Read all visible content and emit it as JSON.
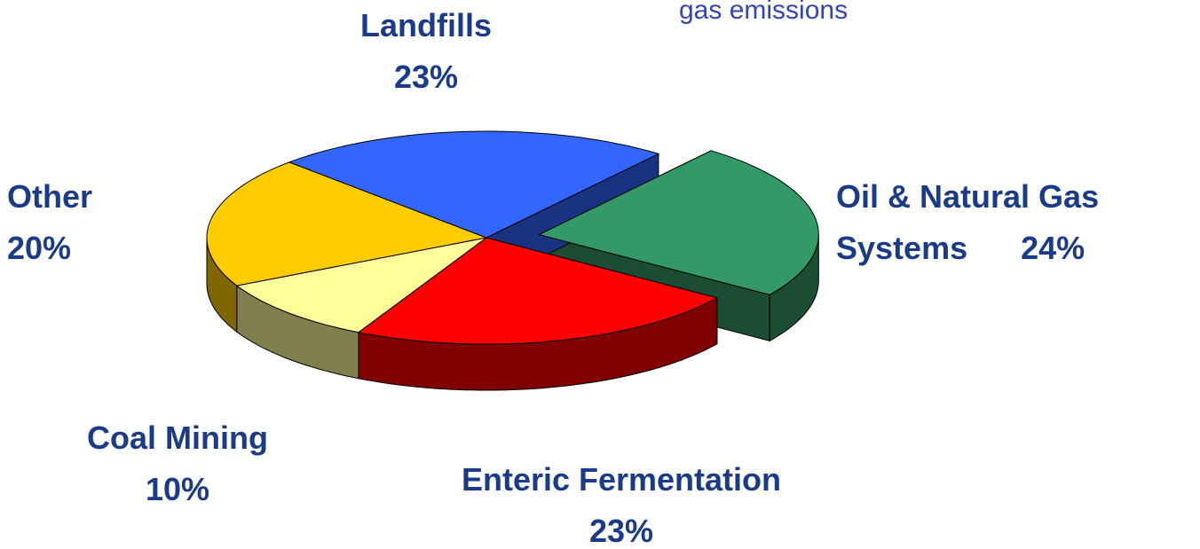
{
  "chart_data": {
    "type": "pie",
    "annotation": "gas emissions",
    "categories": [
      "Oil & Natural Gas Systems",
      "Enteric Fermentation",
      "Coal Mining",
      "Other",
      "Landfills"
    ],
    "values": [
      24,
      23,
      10,
      20,
      23
    ],
    "value_labels": [
      "24%",
      "23%",
      "10%",
      "20%",
      "23%"
    ],
    "colors": [
      "#339966",
      "#ff0000",
      "#ffff99",
      "#ffcc00",
      "#3366ff"
    ],
    "exploded": [
      "Oil & Natural Gas Systems"
    ]
  }
}
